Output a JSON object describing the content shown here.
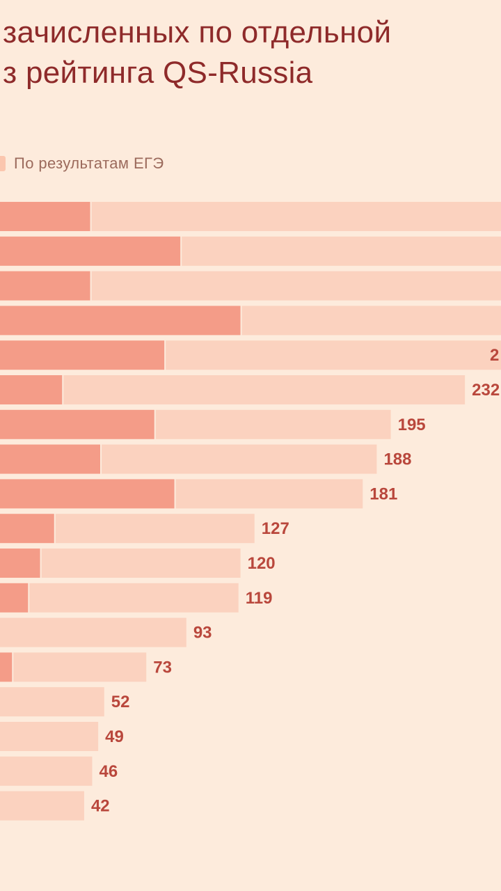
{
  "title": {
    "line1": "зачисленных по отдельной",
    "line2": "з рейтинга QS-Russia"
  },
  "legend": {
    "visible_entry": "По результатам ЕГЭ"
  },
  "colors": {
    "background": "#fdebdc",
    "title": "#8e2a2a",
    "bar_dark": "#f49c88",
    "bar_light": "#fbd2bf",
    "value_label": "#b9473c",
    "legend_text": "#9b6a5c"
  },
  "chart_data": {
    "type": "bar",
    "orientation": "horizontal",
    "stacked": true,
    "series": [
      {
        "values": [
          45,
          90,
          45,
          120,
          82,
          31,
          77,
          50,
          87,
          27,
          20,
          14,
          0,
          6,
          0,
          0,
          0,
          0
        ]
      },
      {
        "name": "По результатам ЕГЭ",
        "values": [
          null,
          null,
          null,
          null,
          null,
          201,
          118,
          138,
          94,
          100,
          100,
          105,
          93,
          67,
          52,
          49,
          46,
          42
        ]
      }
    ],
    "totals": [
      null,
      null,
      null,
      null,
      null,
      232,
      195,
      188,
      181,
      127,
      120,
      119,
      93,
      73,
      52,
      49,
      46,
      42
    ],
    "value_labels": [
      "",
      "",
      "",
      "",
      "2",
      "232",
      "195",
      "188",
      "181",
      "127",
      "120",
      "119",
      "93",
      "73",
      "52",
      "49",
      "46",
      "42"
    ]
  }
}
